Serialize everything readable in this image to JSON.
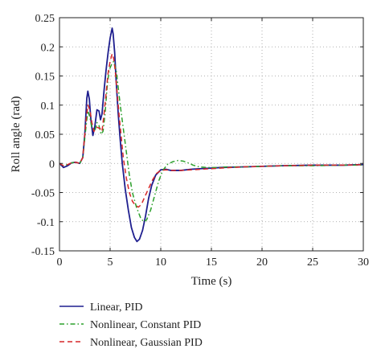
{
  "chart_data": {
    "type": "line",
    "title": "",
    "xlabel": "Time (s)",
    "ylabel": "Roll angle (rad)",
    "xlim": [
      0,
      30
    ],
    "ylim": [
      -0.15,
      0.25
    ],
    "xticks": [
      0,
      5,
      10,
      15,
      20,
      25,
      30
    ],
    "yticks": [
      -0.15,
      -0.1,
      -0.05,
      0,
      0.05,
      0.1,
      0.15,
      0.2,
      0.25
    ],
    "xtick_labels": [
      "0",
      "5",
      "10",
      "15",
      "20",
      "25",
      "30"
    ],
    "ytick_labels": [
      "-0.15",
      "-0.1",
      "-0.05",
      "0",
      "0.05",
      "0.1",
      "0.15",
      "0.2",
      "0.25"
    ],
    "grid": true,
    "grid_style": "dotted",
    "legend_position": "below-plot",
    "series": [
      {
        "name": "Linear, PID",
        "color": "#1f1f8f",
        "dash": "solid",
        "points": [
          [
            0,
            0
          ],
          [
            0.4,
            -0.007
          ],
          [
            0.8,
            -0.004
          ],
          [
            1.2,
            0.001
          ],
          [
            1.6,
            0.002
          ],
          [
            2.0,
            0.0
          ],
          [
            2.3,
            0.01
          ],
          [
            2.5,
            0.05
          ],
          [
            2.7,
            0.112
          ],
          [
            2.8,
            0.124
          ],
          [
            2.95,
            0.11
          ],
          [
            3.1,
            0.075
          ],
          [
            3.3,
            0.048
          ],
          [
            3.5,
            0.065
          ],
          [
            3.7,
            0.092
          ],
          [
            3.9,
            0.09
          ],
          [
            4.05,
            0.075
          ],
          [
            4.2,
            0.085
          ],
          [
            4.4,
            0.125
          ],
          [
            4.6,
            0.16
          ],
          [
            4.8,
            0.19
          ],
          [
            5.0,
            0.215
          ],
          [
            5.2,
            0.232
          ],
          [
            5.3,
            0.222
          ],
          [
            5.45,
            0.19
          ],
          [
            5.6,
            0.14
          ],
          [
            5.8,
            0.085
          ],
          [
            6.0,
            0.04
          ],
          [
            6.2,
            0.0
          ],
          [
            6.5,
            -0.045
          ],
          [
            6.8,
            -0.08
          ],
          [
            7.1,
            -0.11
          ],
          [
            7.4,
            -0.127
          ],
          [
            7.65,
            -0.134
          ],
          [
            7.9,
            -0.13
          ],
          [
            8.2,
            -0.115
          ],
          [
            8.5,
            -0.09
          ],
          [
            8.8,
            -0.06
          ],
          [
            9.1,
            -0.038
          ],
          [
            9.5,
            -0.02
          ],
          [
            10.0,
            -0.011
          ],
          [
            10.5,
            -0.01
          ],
          [
            11.0,
            -0.012
          ],
          [
            12.0,
            -0.012
          ],
          [
            13.0,
            -0.01
          ],
          [
            14.0,
            -0.009
          ],
          [
            15.0,
            -0.008
          ],
          [
            16.0,
            -0.007
          ],
          [
            18.0,
            -0.006
          ],
          [
            20.0,
            -0.005
          ],
          [
            22.0,
            -0.004
          ],
          [
            25.0,
            -0.003
          ],
          [
            28.0,
            -0.003
          ],
          [
            30.0,
            -0.002
          ]
        ]
      },
      {
        "name": "Nonlinear, Constant PID",
        "color": "#2ca02c",
        "dash": "6,3,1.5,3",
        "points": [
          [
            0,
            0
          ],
          [
            0.4,
            -0.004
          ],
          [
            0.8,
            -0.002
          ],
          [
            1.2,
            0.001
          ],
          [
            1.6,
            0.002
          ],
          [
            2.0,
            0.0
          ],
          [
            2.3,
            0.01
          ],
          [
            2.6,
            0.06
          ],
          [
            2.8,
            0.09
          ],
          [
            3.0,
            0.08
          ],
          [
            3.2,
            0.06
          ],
          [
            3.5,
            0.056
          ],
          [
            3.7,
            0.07
          ],
          [
            3.9,
            0.065
          ],
          [
            4.1,
            0.05
          ],
          [
            4.3,
            0.055
          ],
          [
            4.5,
            0.085
          ],
          [
            4.7,
            0.13
          ],
          [
            4.9,
            0.16
          ],
          [
            5.15,
            0.17
          ],
          [
            5.35,
            0.175
          ],
          [
            5.6,
            0.16
          ],
          [
            5.8,
            0.13
          ],
          [
            6.0,
            0.1
          ],
          [
            6.3,
            0.06
          ],
          [
            6.6,
            0.02
          ],
          [
            6.9,
            -0.02
          ],
          [
            7.2,
            -0.05
          ],
          [
            7.6,
            -0.075
          ],
          [
            8.0,
            -0.093
          ],
          [
            8.3,
            -0.1
          ],
          [
            8.6,
            -0.097
          ],
          [
            9.0,
            -0.08
          ],
          [
            9.4,
            -0.055
          ],
          [
            9.8,
            -0.03
          ],
          [
            10.2,
            -0.012
          ],
          [
            10.7,
            -0.001
          ],
          [
            11.2,
            0.003
          ],
          [
            11.7,
            0.005
          ],
          [
            12.2,
            0.004
          ],
          [
            12.7,
            0.001
          ],
          [
            13.2,
            -0.003
          ],
          [
            13.8,
            -0.006
          ],
          [
            14.5,
            -0.007
          ],
          [
            15.5,
            -0.007
          ],
          [
            16.5,
            -0.006
          ],
          [
            18.0,
            -0.006
          ],
          [
            20.0,
            -0.005
          ],
          [
            22.0,
            -0.004
          ],
          [
            25.0,
            -0.004
          ],
          [
            28.0,
            -0.003
          ],
          [
            30.0,
            -0.003
          ]
        ]
      },
      {
        "name": "Nonlinear, Gaussian PID",
        "color": "#d62728",
        "dash": "6,4",
        "points": [
          [
            0,
            0
          ],
          [
            0.4,
            -0.004
          ],
          [
            0.8,
            -0.002
          ],
          [
            1.2,
            0.001
          ],
          [
            1.6,
            0.002
          ],
          [
            2.0,
            0.0
          ],
          [
            2.3,
            0.01
          ],
          [
            2.6,
            0.07
          ],
          [
            2.8,
            0.1
          ],
          [
            3.0,
            0.092
          ],
          [
            3.2,
            0.07
          ],
          [
            3.4,
            0.055
          ],
          [
            3.7,
            0.062
          ],
          [
            4.0,
            0.06
          ],
          [
            4.2,
            0.055
          ],
          [
            4.4,
            0.085
          ],
          [
            4.6,
            0.12
          ],
          [
            4.8,
            0.155
          ],
          [
            5.0,
            0.175
          ],
          [
            5.2,
            0.188
          ],
          [
            5.35,
            0.18
          ],
          [
            5.5,
            0.16
          ],
          [
            5.7,
            0.12
          ],
          [
            5.9,
            0.08
          ],
          [
            6.1,
            0.045
          ],
          [
            6.3,
            0.01
          ],
          [
            6.6,
            -0.025
          ],
          [
            6.9,
            -0.05
          ],
          [
            7.2,
            -0.065
          ],
          [
            7.5,
            -0.072
          ],
          [
            7.8,
            -0.075
          ],
          [
            8.1,
            -0.07
          ],
          [
            8.4,
            -0.058
          ],
          [
            8.8,
            -0.043
          ],
          [
            9.2,
            -0.028
          ],
          [
            9.6,
            -0.017
          ],
          [
            10.0,
            -0.012
          ],
          [
            10.5,
            -0.011
          ],
          [
            11.0,
            -0.012
          ],
          [
            12.0,
            -0.012
          ],
          [
            13.0,
            -0.011
          ],
          [
            14.0,
            -0.01
          ],
          [
            15.0,
            -0.009
          ],
          [
            16.0,
            -0.008
          ],
          [
            18.0,
            -0.006
          ],
          [
            20.0,
            -0.005
          ],
          [
            22.0,
            -0.004
          ],
          [
            25.0,
            -0.003
          ],
          [
            28.0,
            -0.003
          ],
          [
            30.0,
            -0.002
          ]
        ]
      }
    ]
  }
}
